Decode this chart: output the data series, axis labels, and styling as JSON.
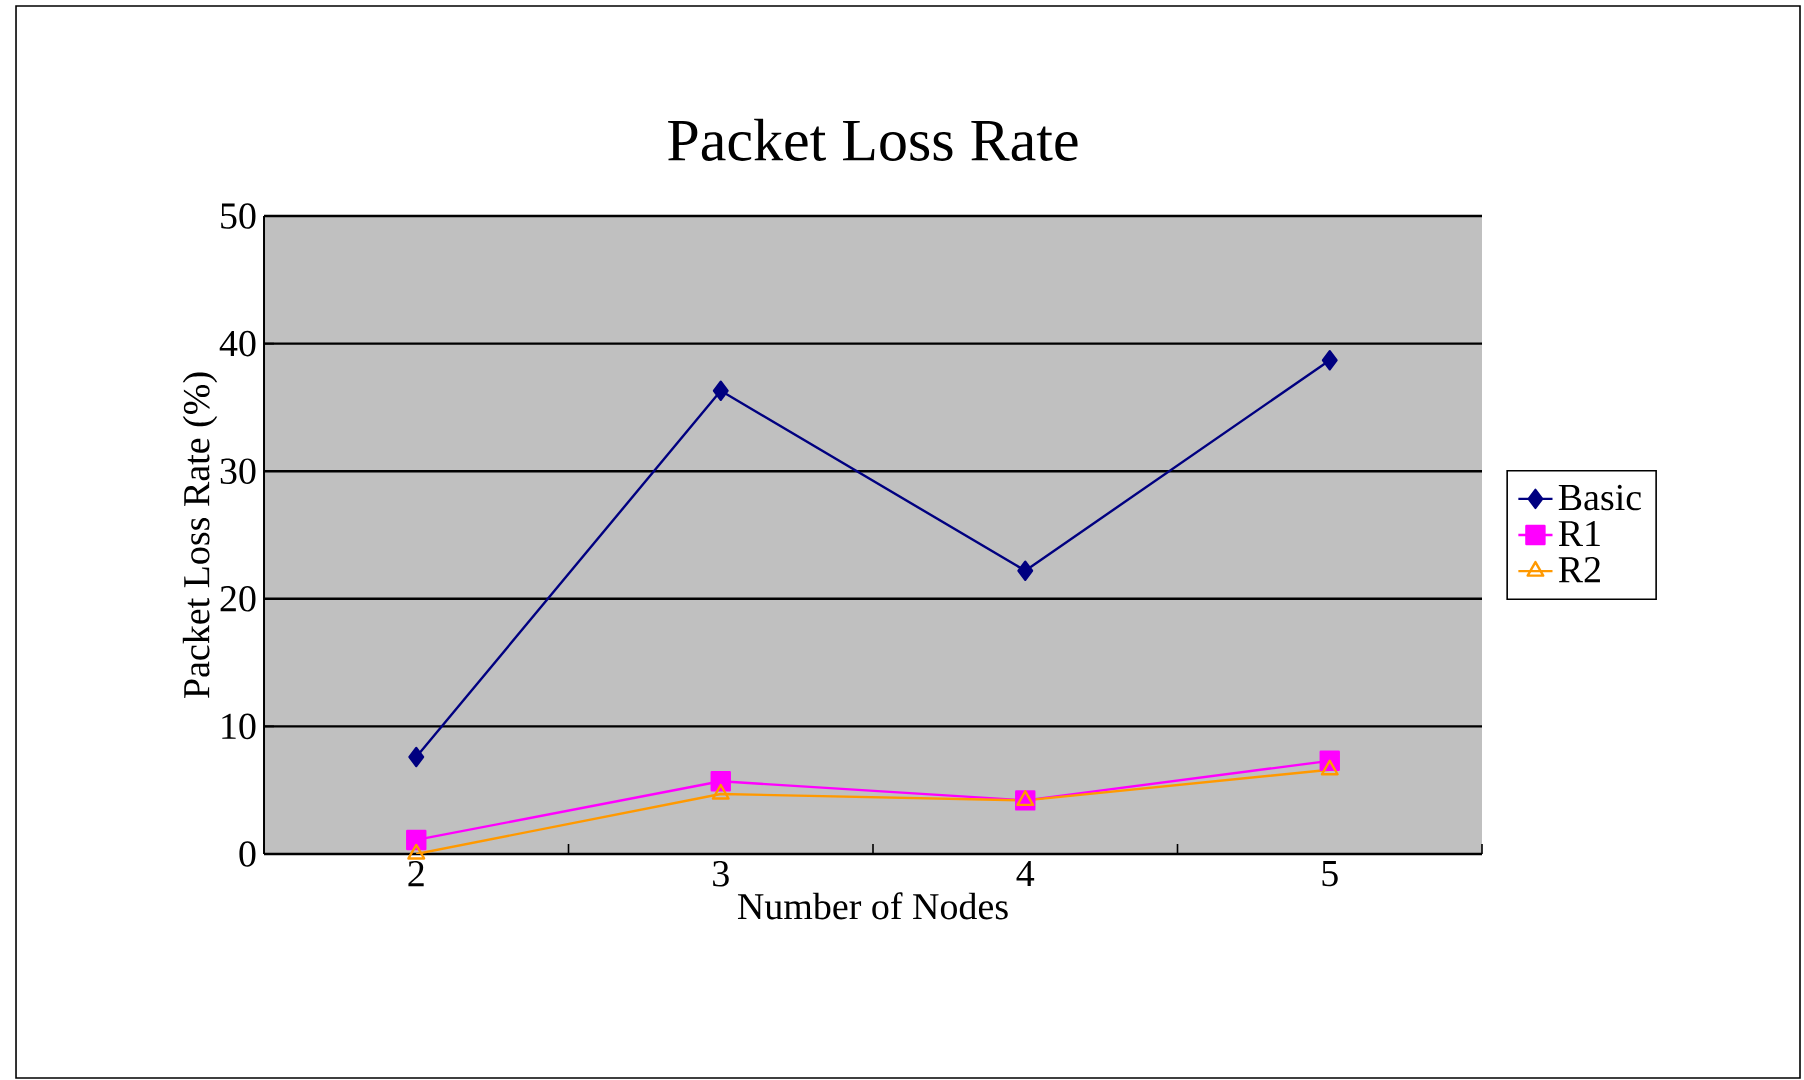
{
  "chart_data": {
    "type": "line",
    "title": "Packet Loss Rate",
    "xlabel": "Number of Nodes",
    "ylabel": "Packet Loss Rate (%)",
    "categories": [
      "2",
      "3",
      "4",
      "5"
    ],
    "series": [
      {
        "name": "Basic",
        "color": "#000080",
        "marker": "diamond",
        "values": [
          7.6,
          36.3,
          22.2,
          38.7
        ]
      },
      {
        "name": "R1",
        "color": "#ff00ff",
        "marker": "square",
        "values": [
          1.1,
          5.7,
          4.2,
          7.3
        ]
      },
      {
        "name": "R2",
        "color": "#ff9900",
        "marker": "triangle",
        "values": [
          0,
          4.7,
          4.2,
          6.6
        ]
      }
    ],
    "ylim": [
      0,
      50
    ],
    "yticks": [
      0,
      10,
      20,
      30,
      40,
      50
    ],
    "grid": "y",
    "legend": "right"
  }
}
